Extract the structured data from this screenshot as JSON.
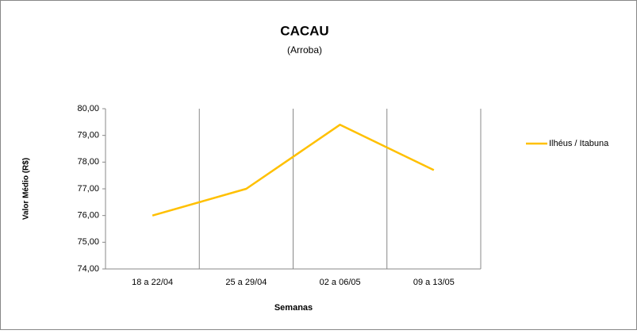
{
  "chart_data": {
    "type": "line",
    "title": "CACAU",
    "subtitle": "(Arroba)",
    "y_label": "Valor Médio (R$)",
    "x_label": "Semanas",
    "categories": [
      "18 a 22/04",
      "25 a 29/04",
      "02 a 06/05",
      "09 a 13/05"
    ],
    "series": [
      {
        "name": "Ilhéus / Itabuna",
        "color": "#ffc000",
        "values": [
          76.0,
          77.0,
          79.4,
          77.7
        ]
      }
    ],
    "ylim": [
      74,
      80
    ],
    "yticks": [
      {
        "value": 74,
        "label": "74,00"
      },
      {
        "value": 75,
        "label": "75,00"
      },
      {
        "value": 76,
        "label": "76,00"
      },
      {
        "value": 77,
        "label": "77,00"
      },
      {
        "value": 78,
        "label": "78,00"
      },
      {
        "value": 79,
        "label": "79,00"
      },
      {
        "value": 80,
        "label": "80,00"
      }
    ],
    "legend": "right"
  }
}
